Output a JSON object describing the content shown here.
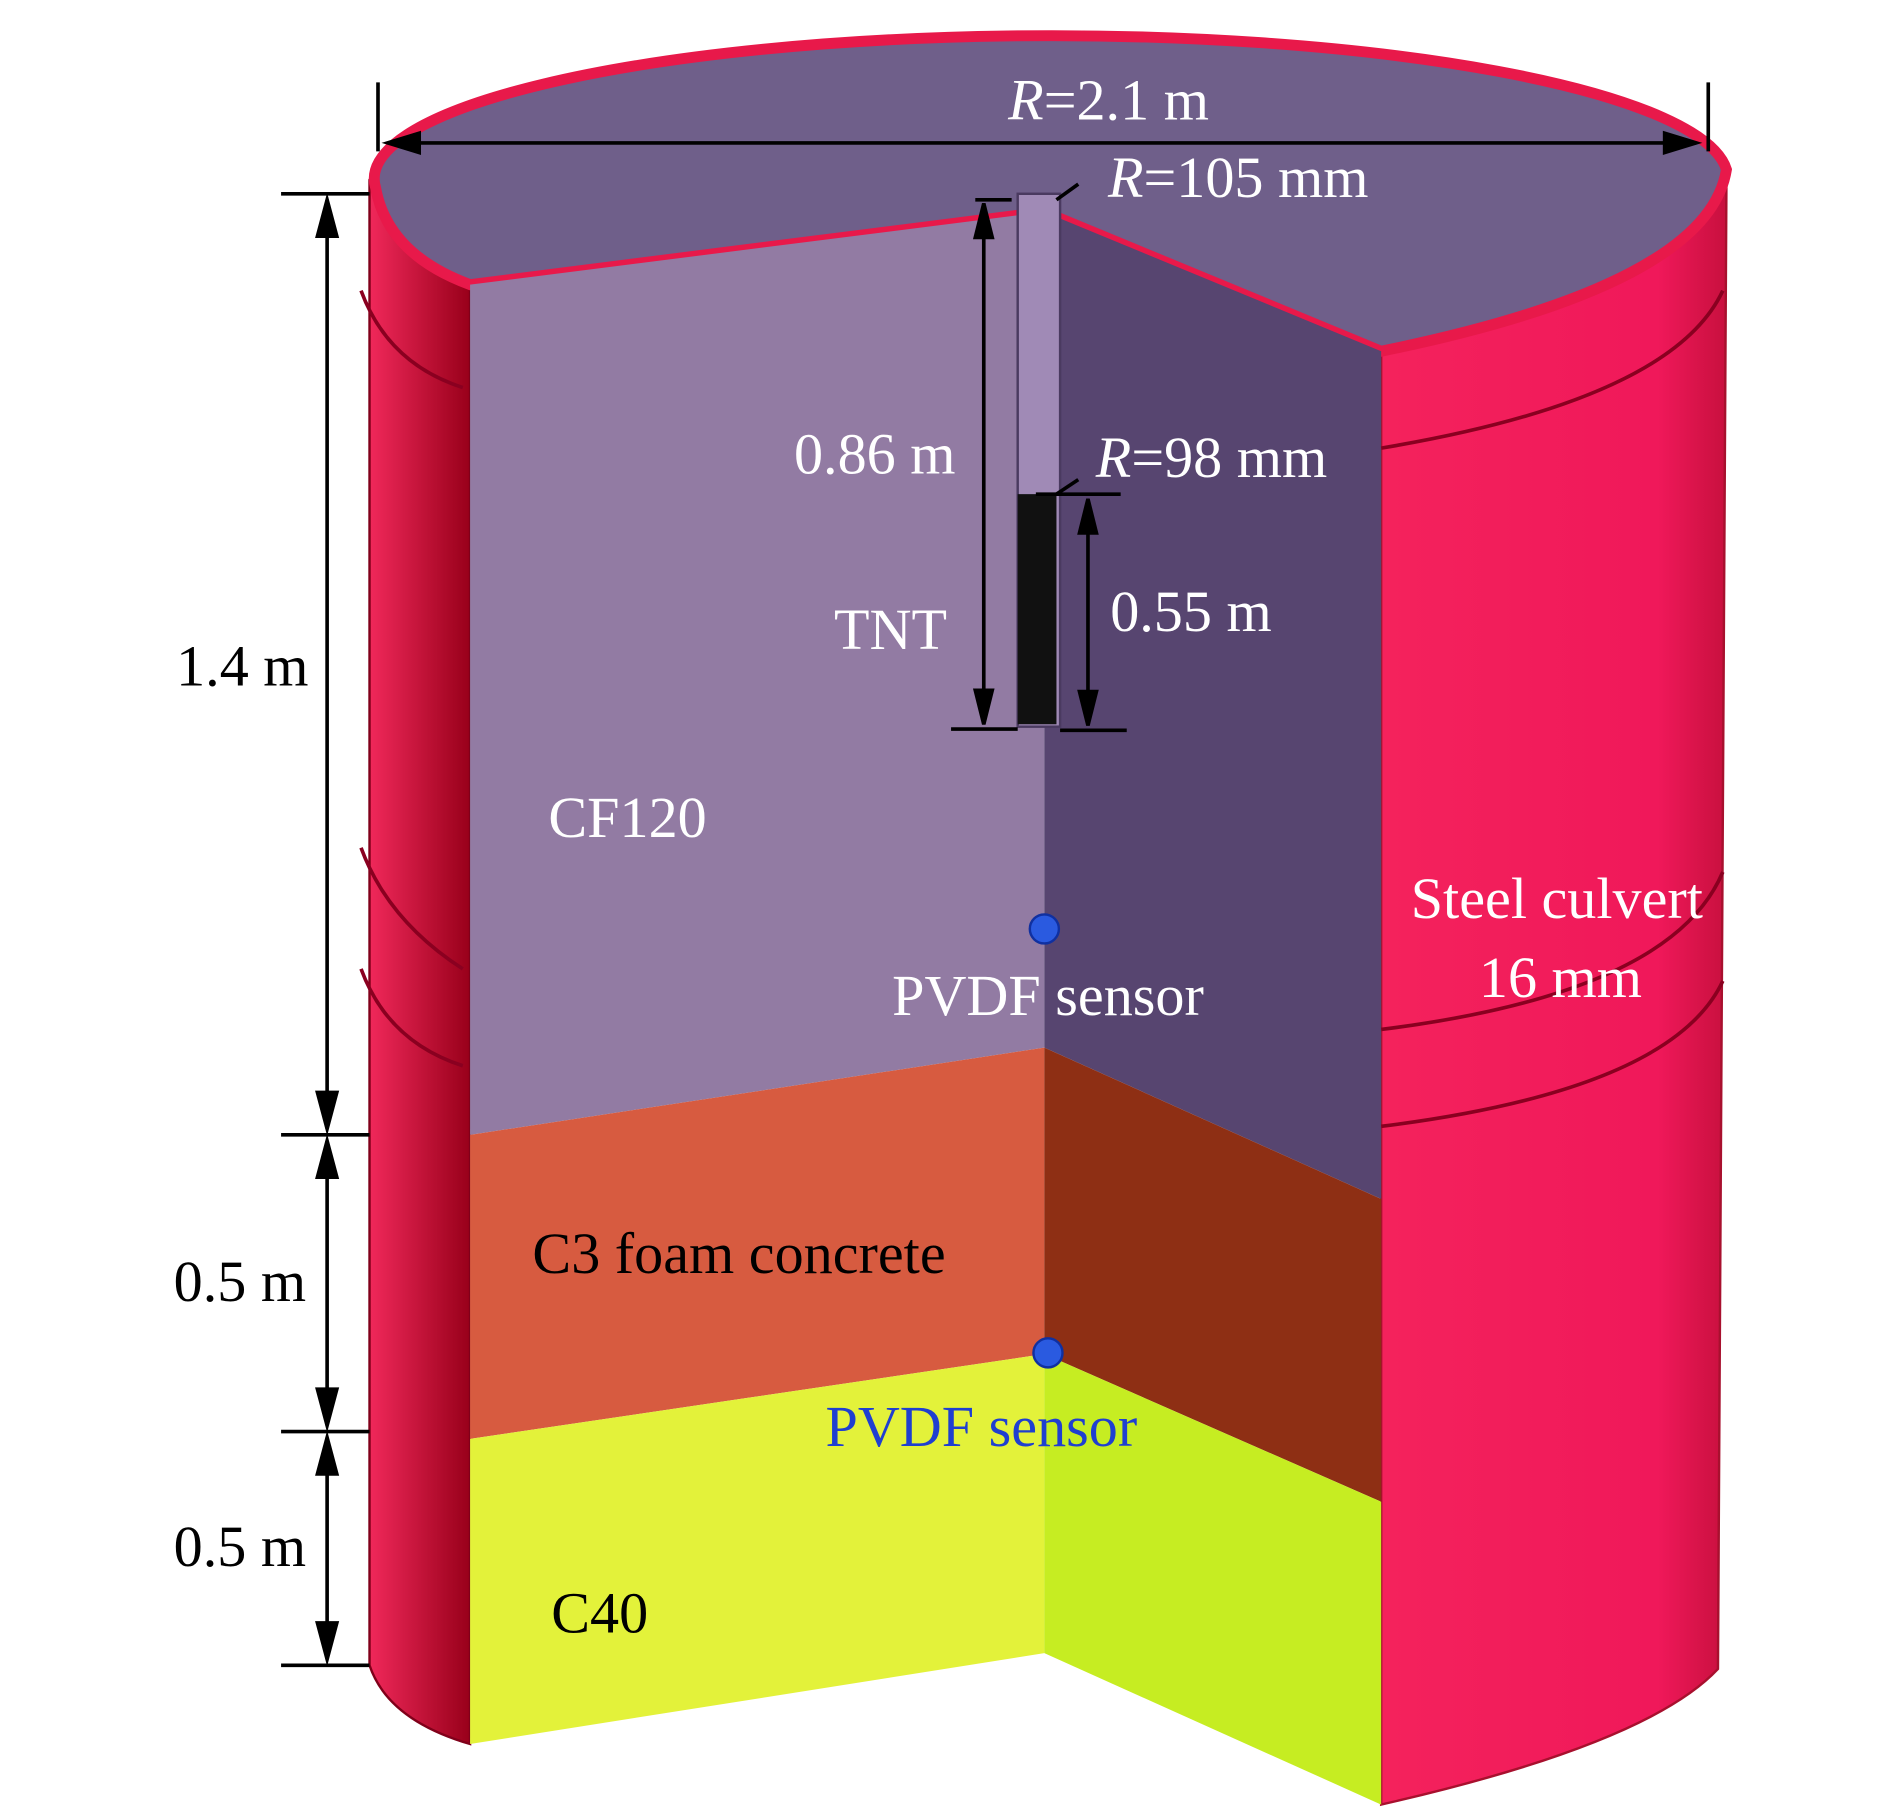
{
  "dimensions": {
    "outer_radius": {
      "symbol": "R",
      "text": "=2.1 m"
    },
    "hole_radius": {
      "symbol": "R",
      "text": "=105 mm"
    },
    "charge_radius": {
      "symbol": "R",
      "text": "=98 mm"
    },
    "hole_depth": "0.86 m",
    "charge_length": "0.55 m",
    "layer_heights": [
      "1.4 m",
      "0.5 m",
      "0.5 m"
    ]
  },
  "labels": {
    "charge": "TNT",
    "layers": [
      "CF120",
      "C3 foam concrete",
      "C40"
    ],
    "culvert": [
      "Steel culvert",
      "16 mm"
    ],
    "sensors": [
      "PVDF sensor",
      "PVDF sensor"
    ]
  }
}
